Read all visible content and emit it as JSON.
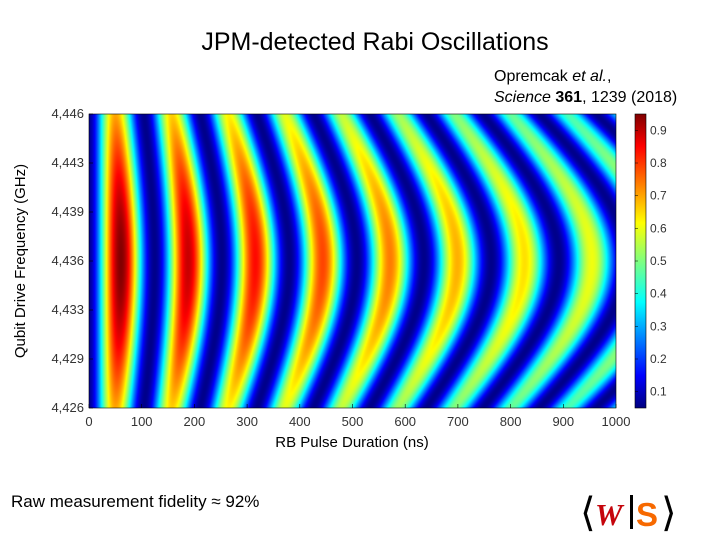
{
  "title": "JPM-detected Rabi Oscillations",
  "citation": {
    "authors": "Opremcak",
    "et_al": "et al.",
    "journal": "Science",
    "volume": "361",
    "rest": ", 1239 (2018)"
  },
  "footer": {
    "label": "Raw measurement  fidelity",
    "approx": "≈",
    "value": "92%"
  },
  "chart_data": {
    "type": "heatmap",
    "title": "JPM-detected Rabi Oscillations",
    "xlabel": "RB Pulse Duration (ns)",
    "ylabel": "Qubit Drive Frequency (GHz)",
    "xlim": [
      0,
      1000
    ],
    "ylim": [
      4.426,
      4.446
    ],
    "x_ticks": [
      "0",
      "100",
      "200",
      "300",
      "400",
      "500",
      "600",
      "700",
      "800",
      "900",
      "1000"
    ],
    "y_ticks": [
      "4,426",
      "4,429",
      "4,433",
      "4,436",
      "4,439",
      "4,443",
      "4,446"
    ],
    "resonance_frequency": 4.436,
    "rabi_period_ns": 128,
    "first_peak_ns": 60,
    "colorbar": {
      "range": [
        0.05,
        0.95
      ],
      "ticks": [
        "0.1",
        "0.2",
        "0.3",
        "0.4",
        "0.5",
        "0.6",
        "0.7",
        "0.8",
        "0.9"
      ],
      "colormap": "jet"
    }
  },
  "logo": {
    "left_bracket": "⟨",
    "w_letter": "W",
    "s_letter": "S",
    "right_bracket": "⟩",
    "w_color": "#c5050c",
    "s_color": "#f76900"
  }
}
